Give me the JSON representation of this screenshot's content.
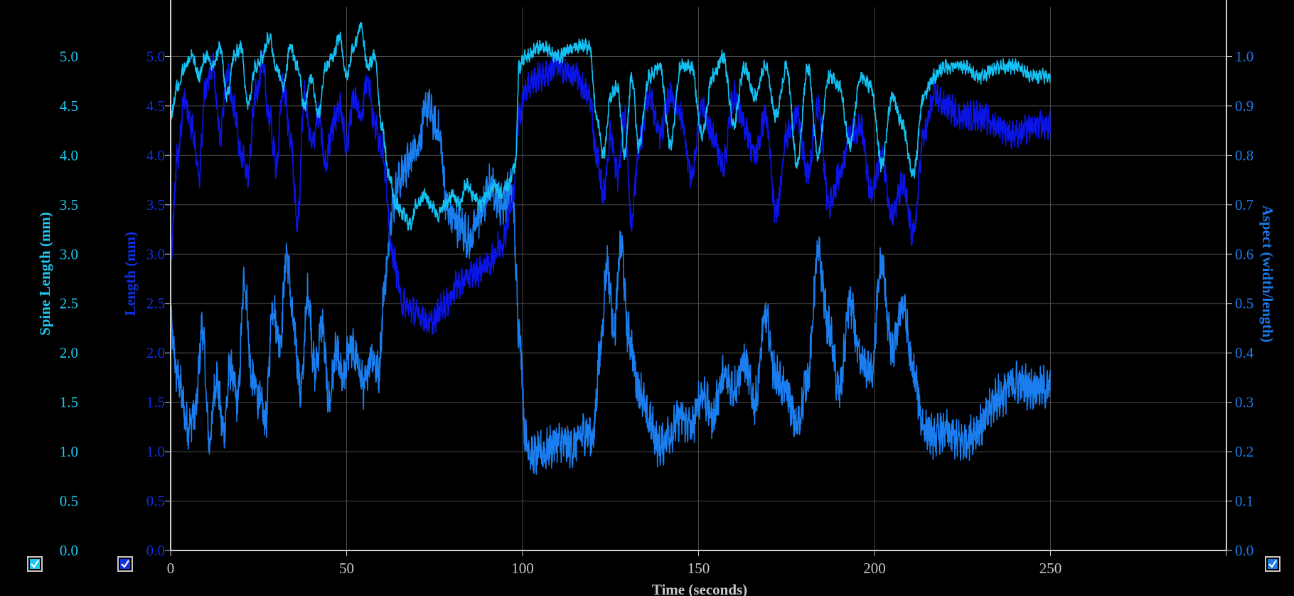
{
  "chart_data": {
    "type": "line",
    "xlabel": "Time (seconds)",
    "xlim": [
      0,
      300
    ],
    "xticks": [
      0,
      50,
      100,
      150,
      200,
      250
    ],
    "y_axes": [
      {
        "id": "spine",
        "label": "Spine Length (mm)",
        "color": "#1ec8f0",
        "range": [
          0,
          5.5
        ],
        "ticks": [
          "0.0",
          "0.5",
          "1.0",
          "1.5",
          "2.0",
          "2.5",
          "3.0",
          "3.5",
          "4.0",
          "4.5",
          "5.0"
        ]
      },
      {
        "id": "length",
        "label": "Length (mm)",
        "color": "#1030e6",
        "range": [
          0,
          5.5
        ],
        "ticks": [
          "0.0",
          "0.5",
          "1.0",
          "1.5",
          "2.0",
          "2.5",
          "3.0",
          "3.5",
          "4.0",
          "4.5",
          "5.0"
        ]
      },
      {
        "id": "aspect",
        "label": "Aspect (width/length)",
        "color": "#1e78e8",
        "range": [
          0,
          1.1
        ],
        "ticks": [
          "0.0",
          "0.1",
          "0.2",
          "0.3",
          "0.4",
          "0.5",
          "0.6",
          "0.7",
          "0.8",
          "0.9",
          "1.0"
        ]
      }
    ],
    "series": [
      {
        "axis": "aspect",
        "color": "#1a7ef0",
        "x": [
          0,
          2,
          5,
          7,
          9,
          11,
          13,
          15,
          17,
          19,
          21,
          23,
          25,
          27,
          29,
          31,
          33,
          35,
          37,
          39,
          41,
          43,
          45,
          47,
          49,
          51,
          53,
          55,
          57,
          59,
          61,
          63,
          65,
          67,
          70,
          73,
          76,
          79,
          82,
          85,
          88,
          91,
          94,
          97,
          99,
          101,
          103,
          106,
          110,
          114,
          118,
          120,
          122,
          124,
          126,
          128,
          130,
          133,
          136,
          139,
          142,
          145,
          148,
          151,
          154,
          157,
          160,
          163,
          166,
          169,
          172,
          175,
          178,
          181,
          184,
          187,
          190,
          193,
          196,
          199,
          202,
          205,
          208,
          211,
          214,
          217,
          220,
          225,
          230,
          235,
          240,
          245,
          250
        ],
        "y": [
          0.45,
          0.35,
          0.25,
          0.28,
          0.45,
          0.22,
          0.35,
          0.24,
          0.37,
          0.3,
          0.55,
          0.35,
          0.31,
          0.26,
          0.5,
          0.42,
          0.6,
          0.45,
          0.32,
          0.52,
          0.36,
          0.46,
          0.3,
          0.4,
          0.34,
          0.42,
          0.38,
          0.33,
          0.4,
          0.36,
          0.55,
          0.7,
          0.75,
          0.78,
          0.82,
          0.9,
          0.85,
          0.68,
          0.66,
          0.63,
          0.68,
          0.74,
          0.7,
          0.73,
          0.45,
          0.22,
          0.19,
          0.2,
          0.22,
          0.21,
          0.24,
          0.23,
          0.4,
          0.58,
          0.45,
          0.62,
          0.44,
          0.33,
          0.26,
          0.21,
          0.24,
          0.27,
          0.25,
          0.32,
          0.27,
          0.35,
          0.33,
          0.38,
          0.3,
          0.47,
          0.35,
          0.32,
          0.25,
          0.35,
          0.6,
          0.45,
          0.32,
          0.5,
          0.38,
          0.36,
          0.58,
          0.4,
          0.5,
          0.36,
          0.25,
          0.23,
          0.24,
          0.22,
          0.25,
          0.31,
          0.34,
          0.33,
          0.33
        ],
        "spread": 0.035
      },
      {
        "axis": "length",
        "color": "#0b14e6",
        "x": [
          0,
          2,
          4,
          6,
          8,
          10,
          12,
          14,
          16,
          18,
          20,
          22,
          24,
          26,
          28,
          30,
          32,
          34,
          36,
          38,
          40,
          42,
          44,
          46,
          48,
          50,
          52,
          54,
          56,
          58,
          60,
          63,
          66,
          70,
          74,
          78,
          82,
          86,
          90,
          94,
          97,
          99,
          101,
          105,
          110,
          115,
          119,
          121,
          123,
          125,
          127,
          129,
          131,
          133,
          136,
          139,
          142,
          145,
          148,
          151,
          154,
          157,
          160,
          163,
          166,
          169,
          172,
          175,
          178,
          181,
          184,
          187,
          190,
          193,
          196,
          199,
          202,
          205,
          208,
          211,
          214,
          217,
          220,
          225,
          230,
          235,
          240,
          245,
          250
        ],
        "y": [
          3.0,
          4.0,
          4.6,
          4.3,
          3.8,
          4.7,
          4.9,
          4.2,
          4.8,
          4.5,
          4.0,
          3.8,
          4.6,
          4.9,
          4.4,
          3.9,
          4.7,
          4.2,
          3.3,
          4.6,
          4.1,
          4.4,
          3.9,
          4.3,
          4.5,
          4.1,
          4.6,
          4.4,
          4.8,
          4.3,
          4.1,
          3.0,
          2.5,
          2.4,
          2.3,
          2.5,
          2.7,
          2.8,
          2.9,
          3.1,
          3.5,
          4.4,
          4.7,
          4.8,
          4.9,
          4.8,
          4.6,
          4.0,
          3.6,
          4.2,
          3.8,
          4.4,
          3.3,
          4.1,
          4.6,
          4.2,
          4.6,
          4.4,
          3.8,
          4.5,
          4.2,
          3.9,
          4.6,
          4.3,
          4.0,
          4.4,
          3.4,
          4.2,
          4.4,
          3.8,
          4.5,
          3.5,
          3.8,
          4.2,
          4.3,
          3.6,
          4.0,
          3.4,
          3.7,
          3.2,
          4.2,
          4.6,
          4.5,
          4.4,
          4.4,
          4.3,
          4.2,
          4.3,
          4.3
        ],
        "spread": 0.12
      },
      {
        "axis": "spine",
        "color": "#14c0f2",
        "x": [
          0,
          2,
          4,
          6,
          8,
          10,
          12,
          14,
          16,
          18,
          20,
          22,
          24,
          26,
          28,
          30,
          32,
          34,
          36,
          38,
          40,
          42,
          44,
          46,
          48,
          50,
          52,
          54,
          56,
          58,
          60,
          62,
          64,
          66,
          68,
          70,
          72,
          74,
          76,
          78,
          80,
          82,
          84,
          86,
          88,
          90,
          92,
          94,
          96,
          98,
          99,
          101,
          105,
          110,
          115,
          119,
          121,
          123,
          125,
          127,
          129,
          131,
          133,
          136,
          139,
          142,
          145,
          148,
          151,
          154,
          157,
          160,
          163,
          166,
          169,
          172,
          175,
          178,
          181,
          184,
          187,
          190,
          193,
          196,
          199,
          202,
          205,
          208,
          211,
          214,
          217,
          220,
          225,
          230,
          235,
          240,
          245,
          250
        ],
        "y": [
          4.4,
          4.7,
          4.9,
          5.0,
          4.8,
          5.0,
          4.9,
          5.1,
          4.6,
          5.0,
          5.1,
          4.5,
          4.9,
          5.0,
          5.2,
          4.9,
          4.7,
          5.1,
          4.9,
          4.5,
          4.8,
          4.4,
          4.9,
          5.0,
          5.2,
          4.8,
          5.1,
          5.3,
          4.9,
          5.0,
          4.3,
          3.8,
          3.5,
          3.4,
          3.3,
          3.5,
          3.6,
          3.5,
          3.4,
          3.5,
          3.6,
          3.5,
          3.7,
          3.6,
          3.5,
          3.6,
          3.7,
          3.6,
          3.7,
          3.9,
          4.9,
          5.0,
          5.1,
          5.0,
          5.1,
          5.1,
          4.4,
          4.0,
          4.6,
          4.7,
          4.0,
          4.8,
          4.1,
          4.8,
          4.9,
          4.1,
          4.9,
          4.9,
          4.2,
          4.8,
          5.0,
          4.3,
          4.9,
          4.6,
          4.9,
          4.4,
          4.9,
          3.9,
          4.9,
          4.0,
          4.8,
          4.7,
          4.1,
          4.8,
          4.7,
          3.9,
          4.6,
          4.3,
          3.8,
          4.6,
          4.8,
          4.9,
          4.9,
          4.8,
          4.9,
          4.9,
          4.8,
          4.8
        ],
        "spread": 0.06
      }
    ]
  },
  "legend_checkboxes": [
    {
      "name": "spine-length-toggle",
      "color": "#1ec8f0",
      "checked": true
    },
    {
      "name": "length-toggle",
      "color": "#1030e6",
      "checked": true
    },
    {
      "name": "aspect-toggle",
      "color": "#1e78e8",
      "checked": true
    }
  ]
}
